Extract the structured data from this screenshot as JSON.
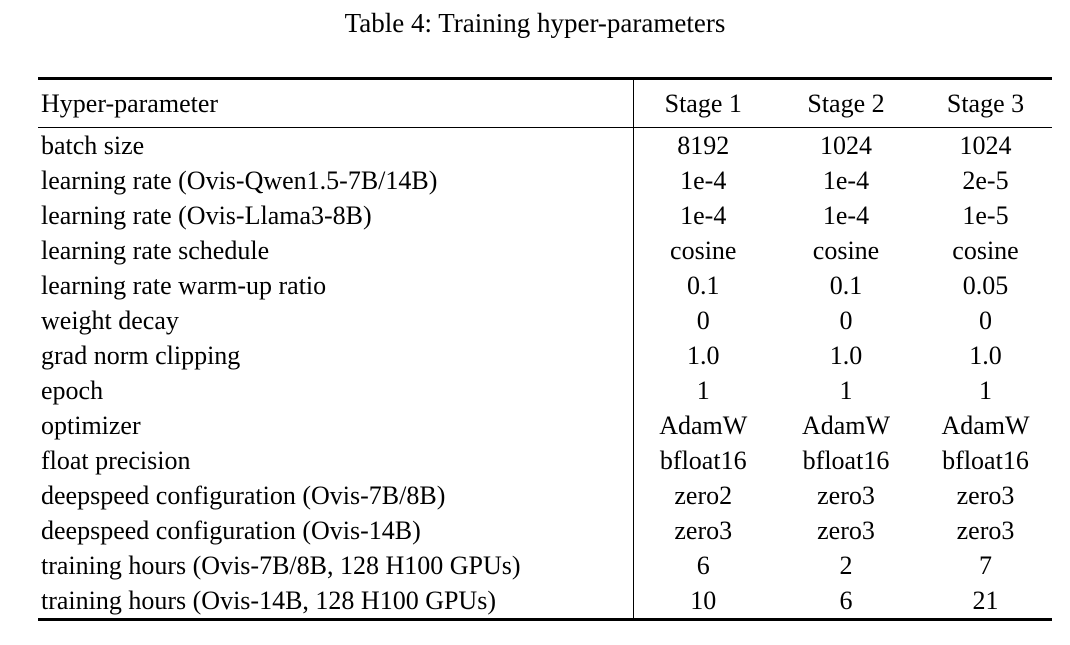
{
  "title": "Table 4: Training hyper-parameters",
  "table": {
    "columns": [
      "Hyper-parameter",
      "Stage 1",
      "Stage 2",
      "Stage 3"
    ],
    "rows": [
      {
        "label": "batch size",
        "values": [
          "8192",
          "1024",
          "1024"
        ]
      },
      {
        "label": "learning rate (Ovis-Qwen1.5-7B/14B)",
        "values": [
          "1e-4",
          "1e-4",
          "2e-5"
        ]
      },
      {
        "label": "learning rate (Ovis-Llama3-8B)",
        "values": [
          "1e-4",
          "1e-4",
          "1e-5"
        ]
      },
      {
        "label": "learning rate schedule",
        "values": [
          "cosine",
          "cosine",
          "cosine"
        ]
      },
      {
        "label": "learning rate warm-up ratio",
        "values": [
          "0.1",
          "0.1",
          "0.05"
        ]
      },
      {
        "label": "weight decay",
        "values": [
          "0",
          "0",
          "0"
        ]
      },
      {
        "label": "grad norm clipping",
        "values": [
          "1.0",
          "1.0",
          "1.0"
        ]
      },
      {
        "label": "epoch",
        "values": [
          "1",
          "1",
          "1"
        ]
      },
      {
        "label": "optimizer",
        "values": [
          "AdamW",
          "AdamW",
          "AdamW"
        ]
      },
      {
        "label": "float precision",
        "values": [
          "bfloat16",
          "bfloat16",
          "bfloat16"
        ]
      },
      {
        "label": "deepspeed configuration (Ovis-7B/8B)",
        "values": [
          "zero2",
          "zero3",
          "zero3"
        ]
      },
      {
        "label": "deepspeed configuration (Ovis-14B)",
        "values": [
          "zero3",
          "zero3",
          "zero3"
        ]
      },
      {
        "label": "training hours (Ovis-7B/8B, 128 H100 GPUs)",
        "values": [
          "6",
          "2",
          "7"
        ]
      },
      {
        "label": "training hours (Ovis-14B, 128 H100 GPUs)",
        "values": [
          "10",
          "6",
          "21"
        ]
      }
    ]
  },
  "chart_data": {
    "type": "table",
    "title": "Table 4: Training hyper-parameters",
    "columns": [
      "Hyper-parameter",
      "Stage 1",
      "Stage 2",
      "Stage 3"
    ],
    "rows": [
      [
        "batch size",
        "8192",
        "1024",
        "1024"
      ],
      [
        "learning rate (Ovis-Qwen1.5-7B/14B)",
        "1e-4",
        "1e-4",
        "2e-5"
      ],
      [
        "learning rate (Ovis-Llama3-8B)",
        "1e-4",
        "1e-4",
        "1e-5"
      ],
      [
        "learning rate schedule",
        "cosine",
        "cosine",
        "cosine"
      ],
      [
        "learning rate warm-up ratio",
        "0.1",
        "0.1",
        "0.05"
      ],
      [
        "weight decay",
        "0",
        "0",
        "0"
      ],
      [
        "grad norm clipping",
        "1.0",
        "1.0",
        "1.0"
      ],
      [
        "epoch",
        "1",
        "1",
        "1"
      ],
      [
        "optimizer",
        "AdamW",
        "AdamW",
        "AdamW"
      ],
      [
        "float precision",
        "bfloat16",
        "bfloat16",
        "bfloat16"
      ],
      [
        "deepspeed configuration (Ovis-7B/8B)",
        "zero2",
        "zero3",
        "zero3"
      ],
      [
        "deepspeed configuration (Ovis-14B)",
        "zero3",
        "zero3",
        "zero3"
      ],
      [
        "training hours (Ovis-7B/8B, 128 H100 GPUs)",
        "6",
        "2",
        "7"
      ],
      [
        "training hours (Ovis-14B, 128 H100 GPUs)",
        "10",
        "6",
        "21"
      ]
    ]
  },
  "colors": {
    "text": "#000000",
    "background": "#ffffff",
    "rule": "#000000"
  }
}
